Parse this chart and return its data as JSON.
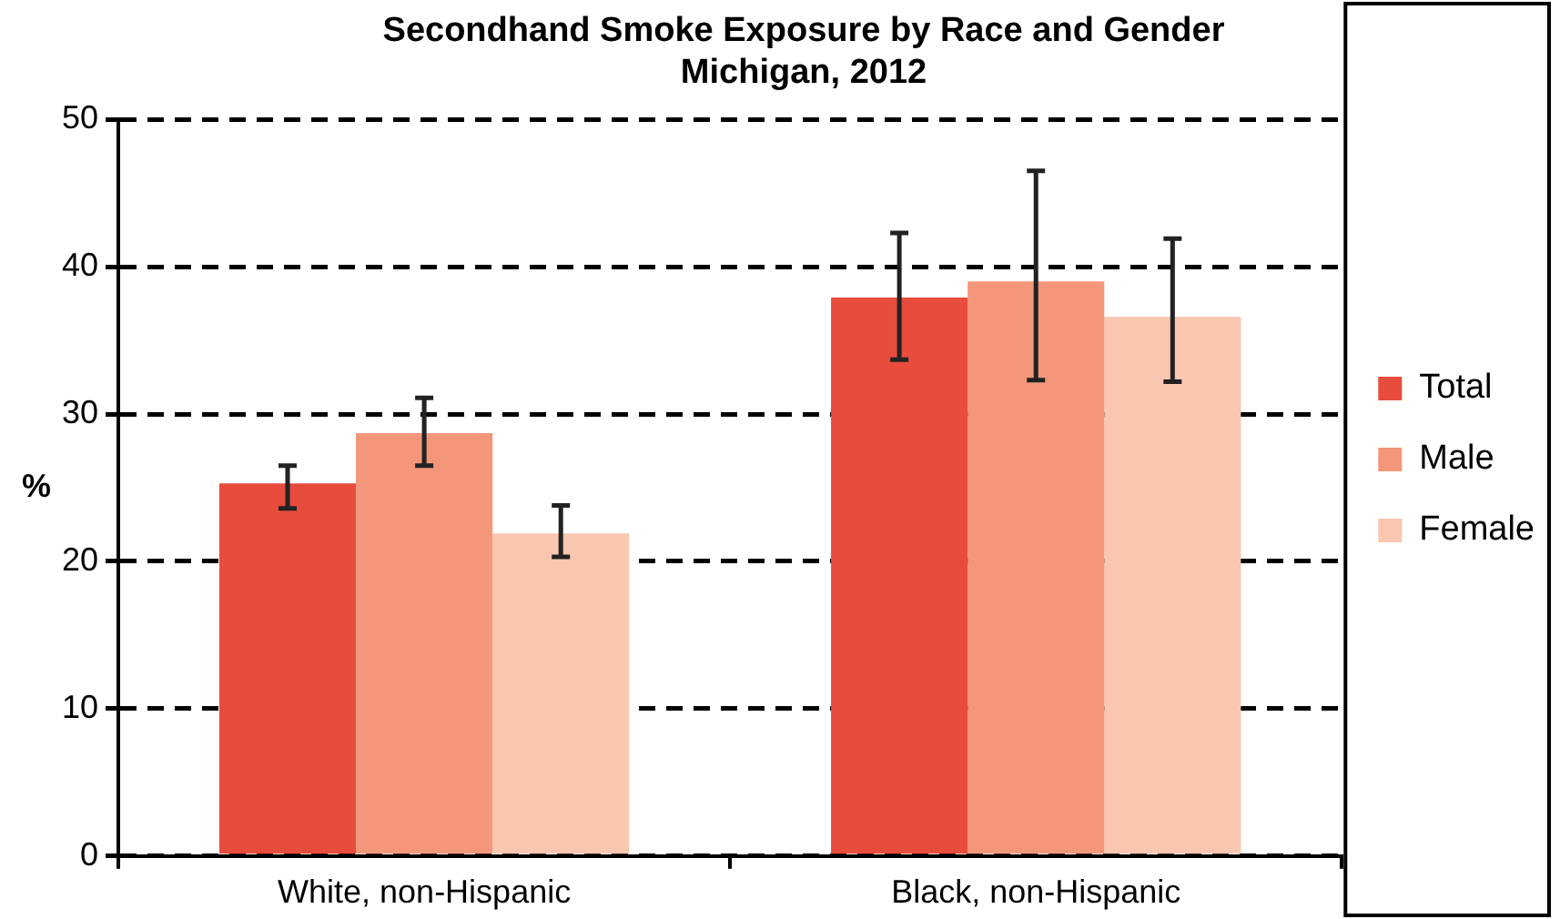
{
  "chart_data": {
    "type": "bar",
    "title": [
      "Secondhand Smoke Exposure by Race and Gender",
      "Michigan, 2012"
    ],
    "ylabel": "%",
    "categories": [
      "White, non-Hispanic",
      "Black, non-Hispanic"
    ],
    "series": [
      {
        "name": "Total",
        "color": "#e84c3d",
        "values": [
          25.3,
          37.9
        ],
        "errors": [
          [
            23.6,
            26.5
          ],
          [
            33.7,
            42.3
          ]
        ]
      },
      {
        "name": "Male",
        "color": "#f4967a",
        "values": [
          28.7,
          39.0
        ],
        "errors": [
          [
            26.5,
            31.1
          ],
          [
            32.3,
            46.5
          ]
        ]
      },
      {
        "name": "Female",
        "color": "#f9c6b0",
        "values": [
          21.9,
          36.6
        ],
        "errors": [
          [
            20.3,
            23.8
          ],
          [
            32.2,
            41.9
          ]
        ]
      }
    ],
    "ylim": [
      0,
      50
    ],
    "yticks": [
      0,
      10,
      20,
      30,
      40,
      50
    ],
    "grid": "y",
    "legend": "right"
  }
}
